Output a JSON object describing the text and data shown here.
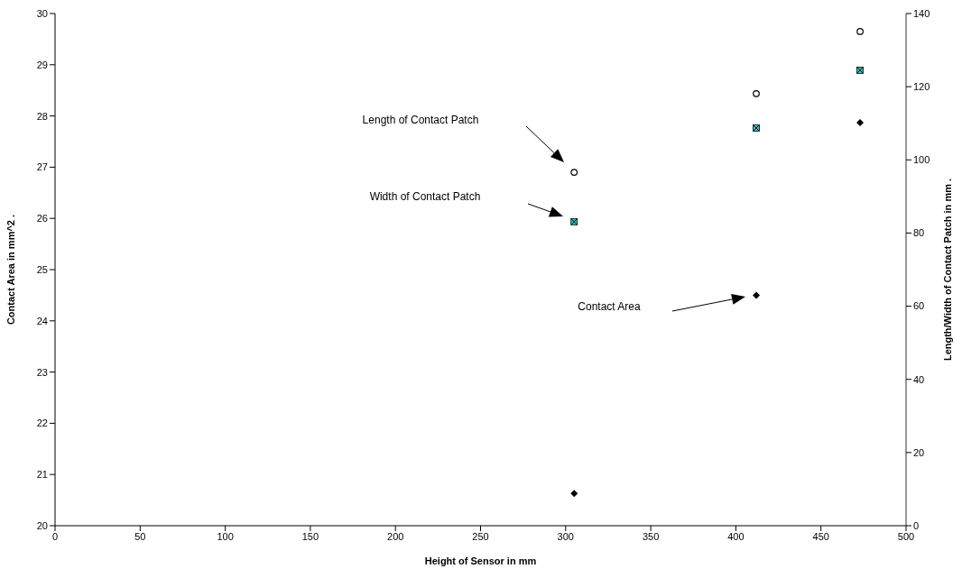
{
  "chart_data": {
    "type": "scatter",
    "xlabel": "Height of Sensor in mm",
    "ylabel": "Contact Area in mm^2  .",
    "y2label": "Length/Width of Contact Patch in mm  .",
    "xlim": [
      0,
      500
    ],
    "xticks": [
      0,
      50,
      100,
      150,
      200,
      250,
      300,
      350,
      400,
      450,
      500
    ],
    "ylim": [
      20,
      30
    ],
    "yticks": [
      20,
      21,
      22,
      23,
      24,
      25,
      26,
      27,
      28,
      29,
      30
    ],
    "y2lim": [
      0,
      140
    ],
    "y2ticks": [
      0,
      20,
      40,
      60,
      80,
      100,
      120,
      140
    ],
    "series": [
      {
        "color": "#000000",
        "marker": "circle",
        "axis": "y2",
        "x": [
          305,
          412,
          473
        ],
        "values": [
          96.6,
          118.1,
          135.1
        ]
      },
      {
        "color": "#33cccc",
        "marker": "square",
        "axis": "y2",
        "x": [
          305,
          412,
          473
        ],
        "values": [
          83.1,
          108.7,
          124.5
        ]
      },
      {
        "color": "#000000",
        "marker": "diamond",
        "x": [
          305,
          412,
          473
        ],
        "values": [
          20.63,
          24.5,
          27.87
        ]
      }
    ],
    "annotations": [
      "Length of Contact Patch",
      "Width of Contact Patch",
      "Contact Area"
    ]
  }
}
